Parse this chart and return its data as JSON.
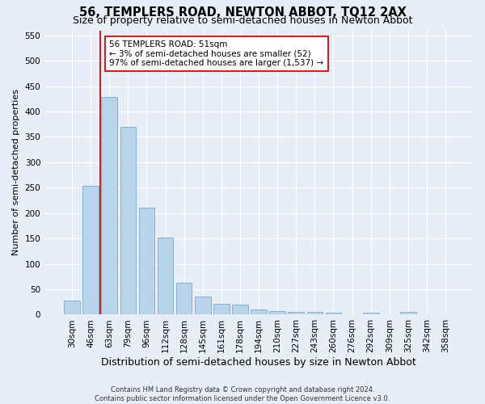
{
  "title": "56, TEMPLERS ROAD, NEWTON ABBOT, TQ12 2AX",
  "subtitle": "Size of property relative to semi-detached houses in Newton Abbot",
  "xlabel": "Distribution of semi-detached houses by size in Newton Abbot",
  "ylabel": "Number of semi-detached properties",
  "categories": [
    "30sqm",
    "46sqm",
    "63sqm",
    "79sqm",
    "96sqm",
    "112sqm",
    "128sqm",
    "145sqm",
    "161sqm",
    "178sqm",
    "194sqm",
    "210sqm",
    "227sqm",
    "243sqm",
    "260sqm",
    "276sqm",
    "292sqm",
    "309sqm",
    "325sqm",
    "342sqm",
    "358sqm"
  ],
  "values": [
    27,
    253,
    428,
    370,
    210,
    152,
    63,
    35,
    22,
    20,
    10,
    7,
    5,
    5,
    4,
    0,
    4,
    0,
    6,
    0,
    0
  ],
  "bar_color": "#b8d4ea",
  "bar_edge_color": "#7aaac8",
  "vline_color": "#cc2222",
  "annotation_text": "56 TEMPLERS ROAD: 51sqm\n← 3% of semi-detached houses are smaller (52)\n97% of semi-detached houses are larger (1,537) →",
  "annotation_box_color": "#ffffff",
  "annotation_box_edge": "#cc2222",
  "footer": "Contains HM Land Registry data © Crown copyright and database right 2024.\nContains public sector information licensed under the Open Government Licence v3.0.",
  "ylim": [
    0,
    560
  ],
  "yticks": [
    0,
    50,
    100,
    150,
    200,
    250,
    300,
    350,
    400,
    450,
    500,
    550
  ],
  "bg_color": "#e8eef8",
  "grid_color": "#ffffff",
  "title_fontsize": 10.5,
  "subtitle_fontsize": 9,
  "tick_fontsize": 7.5,
  "ylabel_fontsize": 8,
  "xlabel_fontsize": 9
}
